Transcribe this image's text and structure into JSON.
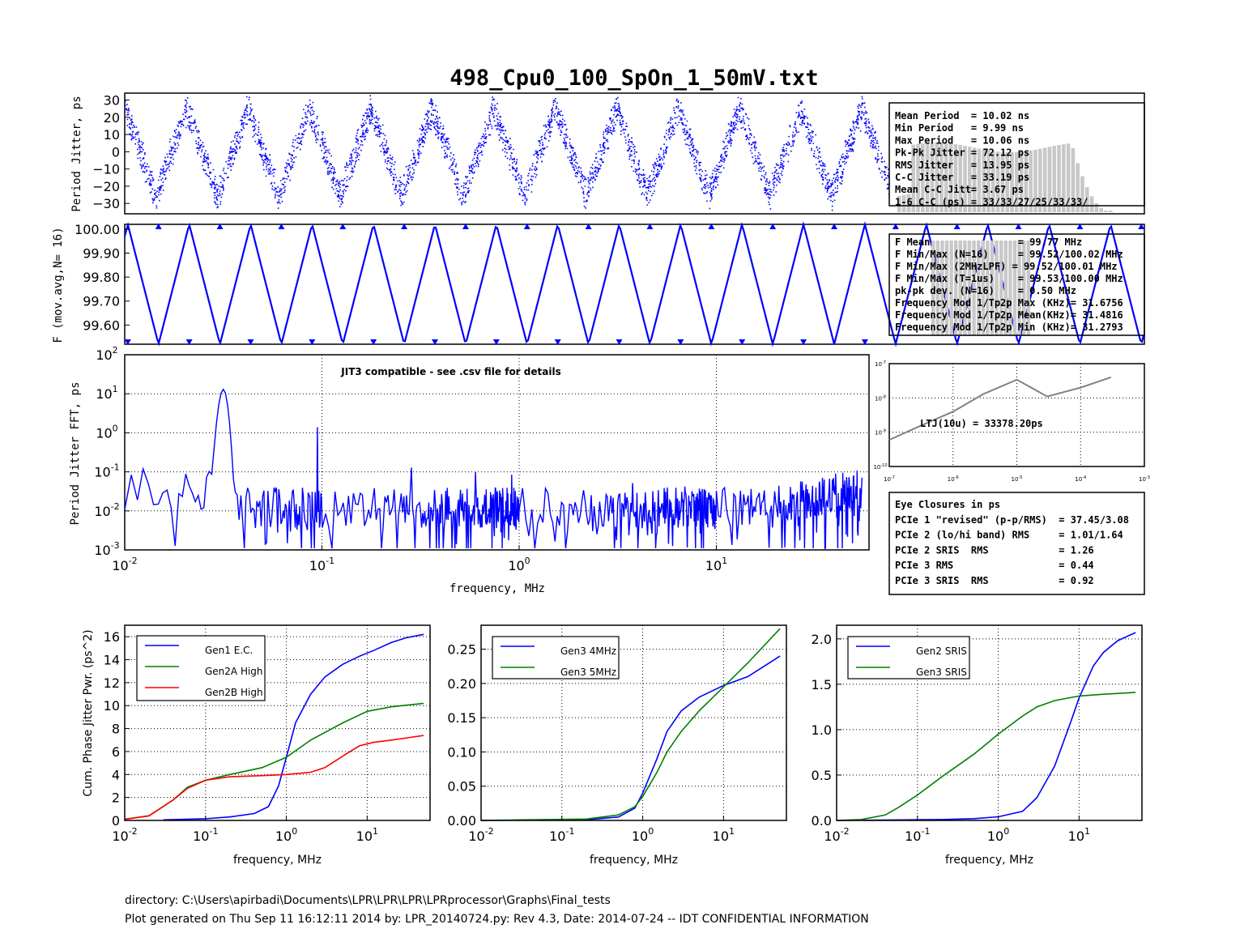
{
  "title": "498_Cpu0_100_SpOn_1_50mV.txt",
  "footer": {
    "directory": "directory: C:\\Users\\apirbadi\\Documents\\LPR\\LPR\\LPR\\LPRprocessor\\Graphs\\Final_tests",
    "generated": "Plot generated on Thu Sep 11 16:12:11 2014 by: LPR_20140724.py: Rev 4.3, Date: 2014-07-24 -- IDT CONFIDENTIAL INFORMATION"
  },
  "colors": {
    "blue": "#0000ff",
    "green": "#008000",
    "red": "#ff0000",
    "gray": "#808080",
    "hist": "#c8c8c8"
  },
  "chart_data": [
    {
      "id": "period-jitter",
      "type": "scatter",
      "ylabel": "Period Jitter, ps",
      "ylim": [
        -36,
        34
      ],
      "yticks": [
        30,
        20,
        10,
        0,
        -10,
        -20,
        -30
      ],
      "ytick_labels": [
        "30",
        "20",
        "10",
        "0",
        "−10",
        "−20",
        "−30"
      ],
      "triangle_cycles": 16.6,
      "amplitude_ps": 25,
      "stats": [
        "Mean Period  = 10.02 ns",
        "Min Period   = 9.99 ns",
        "Max Period   = 10.06 ns",
        "Pk-Pk Jitter = 72.12 ps",
        "RMS Jitter   = 13.95 ps",
        "C-C Jitter   = 33.19 ps",
        "Mean C-C Jitt= 3.67 ps",
        "1-6 C-C (ps) = 33/33/27/25/33/33/"
      ]
    },
    {
      "id": "frequency",
      "type": "line",
      "ylabel": "F (mov.avg,N= 16)",
      "ylim": [
        99.52,
        100.02
      ],
      "yticks": [
        100.0,
        99.9,
        99.8,
        99.7,
        99.6
      ],
      "ytick_labels": [
        "100.00",
        "99.90",
        "99.80",
        "99.70",
        "99.60"
      ],
      "fmin": 99.52,
      "fmax": 100.02,
      "stats": [
        "F Mean               = 99.77 MHz",
        "F Min/Max (N=16)     = 99.52/100.02 MHz",
        "F Min/Max (2MHzLPF) = 99.52/100.01 MHz",
        "F Min/Max (T=1us)    = 99.53/100.00 MHz",
        "pk-pk dev. (N=16)    = 0.50 MHz",
        "Frequency Mod 1/Tp2p Max (KHz)= 31.6756",
        "Frequency Mod 1/Tp2p Mean(KHz)= 31.4816",
        "Frequency Mod 1/Tp2p Min (KHz)= 31.2793"
      ]
    },
    {
      "id": "fft",
      "type": "line",
      "xscale": "log",
      "yscale": "log",
      "xlabel": "frequency, MHz",
      "ylabel": "Period Jitter FFT, ps",
      "annotation": "JIT3 compatible - see .csv file for details",
      "xlim": [
        0.01,
        80
      ],
      "ylim": [
        0.001,
        100
      ],
      "xticks": [
        "10",
        "10",
        "10",
        "10"
      ],
      "xtick_exp": [
        "-2",
        "-1",
        "0",
        "1"
      ],
      "yticks": [
        "10",
        "10",
        "10",
        "10",
        "10",
        "10"
      ],
      "ytick_exp": [
        "2",
        "1",
        "0",
        "-1",
        "-2",
        "-3"
      ],
      "peaks": [
        {
          "x": 0.0316,
          "y": 13
        },
        {
          "x": 0.095,
          "y": 1.4
        },
        {
          "x": 0.158,
          "y": 0.16
        },
        {
          "x": 0.221,
          "y": 0.14
        },
        {
          "x": 0.284,
          "y": 0.12
        }
      ],
      "floor": 0.012
    },
    {
      "id": "ltj",
      "type": "line",
      "xscale": "log",
      "yscale": "log",
      "annotation": "LTJ(10u) = 33378.20ps",
      "xtick_exp": [
        "-7",
        "-6",
        "-5",
        "-4",
        "-3"
      ],
      "ytick_exp": [
        "-7",
        "-8",
        "-9",
        "-10"
      ],
      "x": [
        1e-07,
        3e-07,
        1e-06,
        3e-06,
        1e-05,
        3e-05,
        0.0001,
        0.0003
      ],
      "y": [
        6e-10,
        1.5e-09,
        4e-09,
        1.3e-08,
        3.4e-08,
        1.1e-08,
        2e-08,
        4e-08
      ]
    },
    {
      "id": "cum-gen1-gen2",
      "type": "line",
      "xscale": "log",
      "xlabel": "frequency, MHz",
      "ylabel": "Cum. Phase Jitter Pwr. (ps^2)",
      "ylim": [
        0,
        17
      ],
      "yticks": [
        "16",
        "14",
        "12",
        "10",
        "8",
        "6",
        "4",
        "2",
        "0"
      ],
      "series": [
        {
          "name": "Gen1 E.C.",
          "color": "#0000ff",
          "x": [
            0.03,
            0.1,
            0.2,
            0.4,
            0.6,
            0.8,
            1.0,
            1.3,
            2,
            3,
            5,
            8,
            12,
            20,
            30,
            50
          ],
          "y": [
            0.05,
            0.15,
            0.3,
            0.6,
            1.2,
            3,
            5.5,
            8.5,
            11,
            12.5,
            13.6,
            14.3,
            14.8,
            15.5,
            15.9,
            16.2
          ]
        },
        {
          "name": "Gen2A High",
          "color": "#008000",
          "x": [
            0.01,
            0.02,
            0.04,
            0.06,
            0.1,
            0.2,
            0.5,
            1,
            2,
            5,
            10,
            20,
            50
          ],
          "y": [
            0.1,
            0.4,
            1.8,
            2.9,
            3.5,
            4.0,
            4.6,
            5.5,
            7,
            8.5,
            9.5,
            9.9,
            10.2
          ]
        },
        {
          "name": "Gen2B High",
          "color": "#ff0000",
          "x": [
            0.01,
            0.02,
            0.04,
            0.06,
            0.1,
            0.2,
            0.5,
            1,
            2,
            3,
            5,
            8,
            12,
            20,
            50
          ],
          "y": [
            0.1,
            0.4,
            1.8,
            2.8,
            3.5,
            3.8,
            3.9,
            4.0,
            4.2,
            4.6,
            5.6,
            6.5,
            6.8,
            7.0,
            7.4
          ]
        }
      ]
    },
    {
      "id": "cum-gen3",
      "type": "line",
      "xscale": "log",
      "xlabel": "frequency, MHz",
      "ylim": [
        0,
        0.285
      ],
      "yticks": [
        "0.25",
        "0.20",
        "0.15",
        "0.10",
        "0.05",
        "0.00"
      ],
      "series": [
        {
          "name": "Gen3 4MHz",
          "color": "#0000ff",
          "x": [
            0.01,
            0.2,
            0.5,
            0.8,
            1.0,
            1.5,
            2,
            3,
            5,
            10,
            20,
            50
          ],
          "y": [
            0,
            0.001,
            0.005,
            0.018,
            0.04,
            0.09,
            0.13,
            0.16,
            0.18,
            0.197,
            0.21,
            0.24
          ]
        },
        {
          "name": "Gen3 5MHz",
          "color": "#008000",
          "x": [
            0.01,
            0.2,
            0.5,
            0.8,
            1.0,
            1.5,
            2,
            3,
            5,
            10,
            20,
            50
          ],
          "y": [
            0,
            0.002,
            0.008,
            0.02,
            0.035,
            0.07,
            0.1,
            0.13,
            0.16,
            0.195,
            0.23,
            0.28
          ]
        }
      ]
    },
    {
      "id": "cum-srs",
      "type": "line",
      "xscale": "log",
      "xlabel": "frequency, MHz",
      "ylim": [
        0,
        2.15
      ],
      "yticks": [
        "2.0",
        "1.5",
        "1.0",
        "0.5",
        "0.0"
      ],
      "series": [
        {
          "name": "Gen2 SRIS",
          "color": "#0000ff",
          "x": [
            0.01,
            0.2,
            0.5,
            1,
            2,
            3,
            5,
            8,
            10,
            15,
            20,
            30,
            50
          ],
          "y": [
            0,
            0.01,
            0.02,
            0.04,
            0.1,
            0.25,
            0.6,
            1.1,
            1.35,
            1.7,
            1.85,
            1.98,
            2.07
          ]
        },
        {
          "name": "Gen3 SRIS",
          "color": "#008000",
          "x": [
            0.01,
            0.02,
            0.04,
            0.06,
            0.1,
            0.2,
            0.5,
            1,
            2,
            3,
            5,
            10,
            20,
            50
          ],
          "y": [
            0,
            0.01,
            0.06,
            0.15,
            0.28,
            0.48,
            0.73,
            0.95,
            1.15,
            1.25,
            1.32,
            1.37,
            1.39,
            1.41
          ]
        }
      ]
    }
  ],
  "eye_closures": {
    "title": "Eye Closures in ps",
    "rows": [
      "PCIe 1 \"revised\" (p-p/RMS)  = 37.45/3.08",
      "PCIe 2 (lo/hi band) RMS     = 1.01/1.64",
      "PCIe 2 SRIS  RMS            = 1.26",
      "PCIe 3 RMS                  = 0.44",
      "PCIe 3 SRIS  RMS            = 0.92"
    ]
  }
}
